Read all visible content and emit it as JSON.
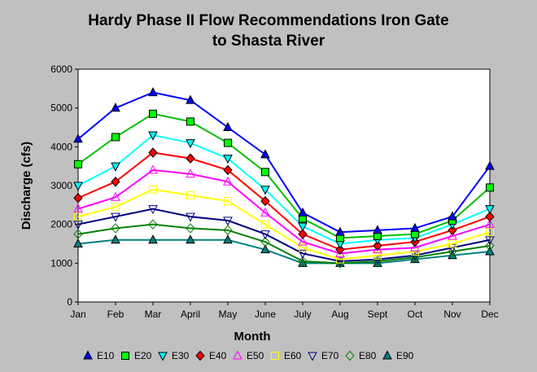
{
  "chart_data": {
    "type": "line",
    "title_lines": [
      "Hardy Phase II Flow Recommendations Iron Gate",
      "to Shasta River"
    ],
    "xlabel": "Month",
    "ylabel": "Discharge (cfs)",
    "ylim": [
      0,
      6000
    ],
    "yticks": [
      0,
      1000,
      2000,
      3000,
      4000,
      5000,
      6000
    ],
    "grid": false,
    "legend_position": "bottom",
    "categories": [
      "Jan",
      "Feb",
      "Mar",
      "April",
      "May",
      "June",
      "July",
      "Aug",
      "Sept",
      "Oct",
      "Nov",
      "Dec"
    ],
    "series": [
      {
        "name": "E10",
        "color": "#0000ff",
        "marker": "triangle-up",
        "marker_fill": "#0000ff",
        "values": [
          4200,
          5000,
          5400,
          5200,
          4500,
          3800,
          2300,
          1800,
          1850,
          1900,
          2200,
          3500
        ]
      },
      {
        "name": "E20",
        "color": "#00c000",
        "marker": "square",
        "marker_fill": "#00ff00",
        "values": [
          3550,
          4250,
          4850,
          4650,
          4100,
          3350,
          2150,
          1650,
          1700,
          1750,
          2100,
          2950
        ]
      },
      {
        "name": "E30",
        "color": "#00ffff",
        "marker": "triangle-down",
        "marker_fill": "#00ffff",
        "values": [
          3000,
          3500,
          4300,
          4100,
          3700,
          2900,
          1950,
          1500,
          1600,
          1650,
          2000,
          2400
        ]
      },
      {
        "name": "E40",
        "color": "#ff0000",
        "marker": "diamond",
        "marker_fill": "#ff0000",
        "values": [
          2680,
          3100,
          3850,
          3700,
          3400,
          2600,
          1750,
          1350,
          1450,
          1550,
          1850,
          2200
        ]
      },
      {
        "name": "E50",
        "color": "#ff00ff",
        "marker": "triangle-up",
        "marker_fill": "none",
        "values": [
          2400,
          2700,
          3400,
          3300,
          3100,
          2300,
          1550,
          1250,
          1350,
          1400,
          1700,
          2000
        ]
      },
      {
        "name": "E60",
        "color": "#ffff00",
        "marker": "square",
        "marker_fill": "none",
        "values": [
          2200,
          2450,
          2900,
          2750,
          2600,
          2000,
          1400,
          1100,
          1200,
          1300,
          1500,
          1800
        ]
      },
      {
        "name": "E70",
        "color": "#000080",
        "marker": "triangle-down",
        "marker_fill": "none",
        "values": [
          2000,
          2200,
          2400,
          2200,
          2100,
          1750,
          1250,
          1050,
          1100,
          1200,
          1400,
          1600
        ]
      },
      {
        "name": "E80",
        "color": "#008000",
        "marker": "diamond",
        "marker_fill": "none",
        "values": [
          1750,
          1900,
          2000,
          1900,
          1850,
          1550,
          1050,
          1000,
          1050,
          1150,
          1300,
          1450
        ]
      },
      {
        "name": "E90",
        "color": "#008080",
        "marker": "triangle-up",
        "marker_fill": "#008080",
        "values": [
          1500,
          1600,
          1600,
          1600,
          1600,
          1350,
          1000,
          1000,
          1000,
          1100,
          1200,
          1300
        ]
      }
    ]
  }
}
